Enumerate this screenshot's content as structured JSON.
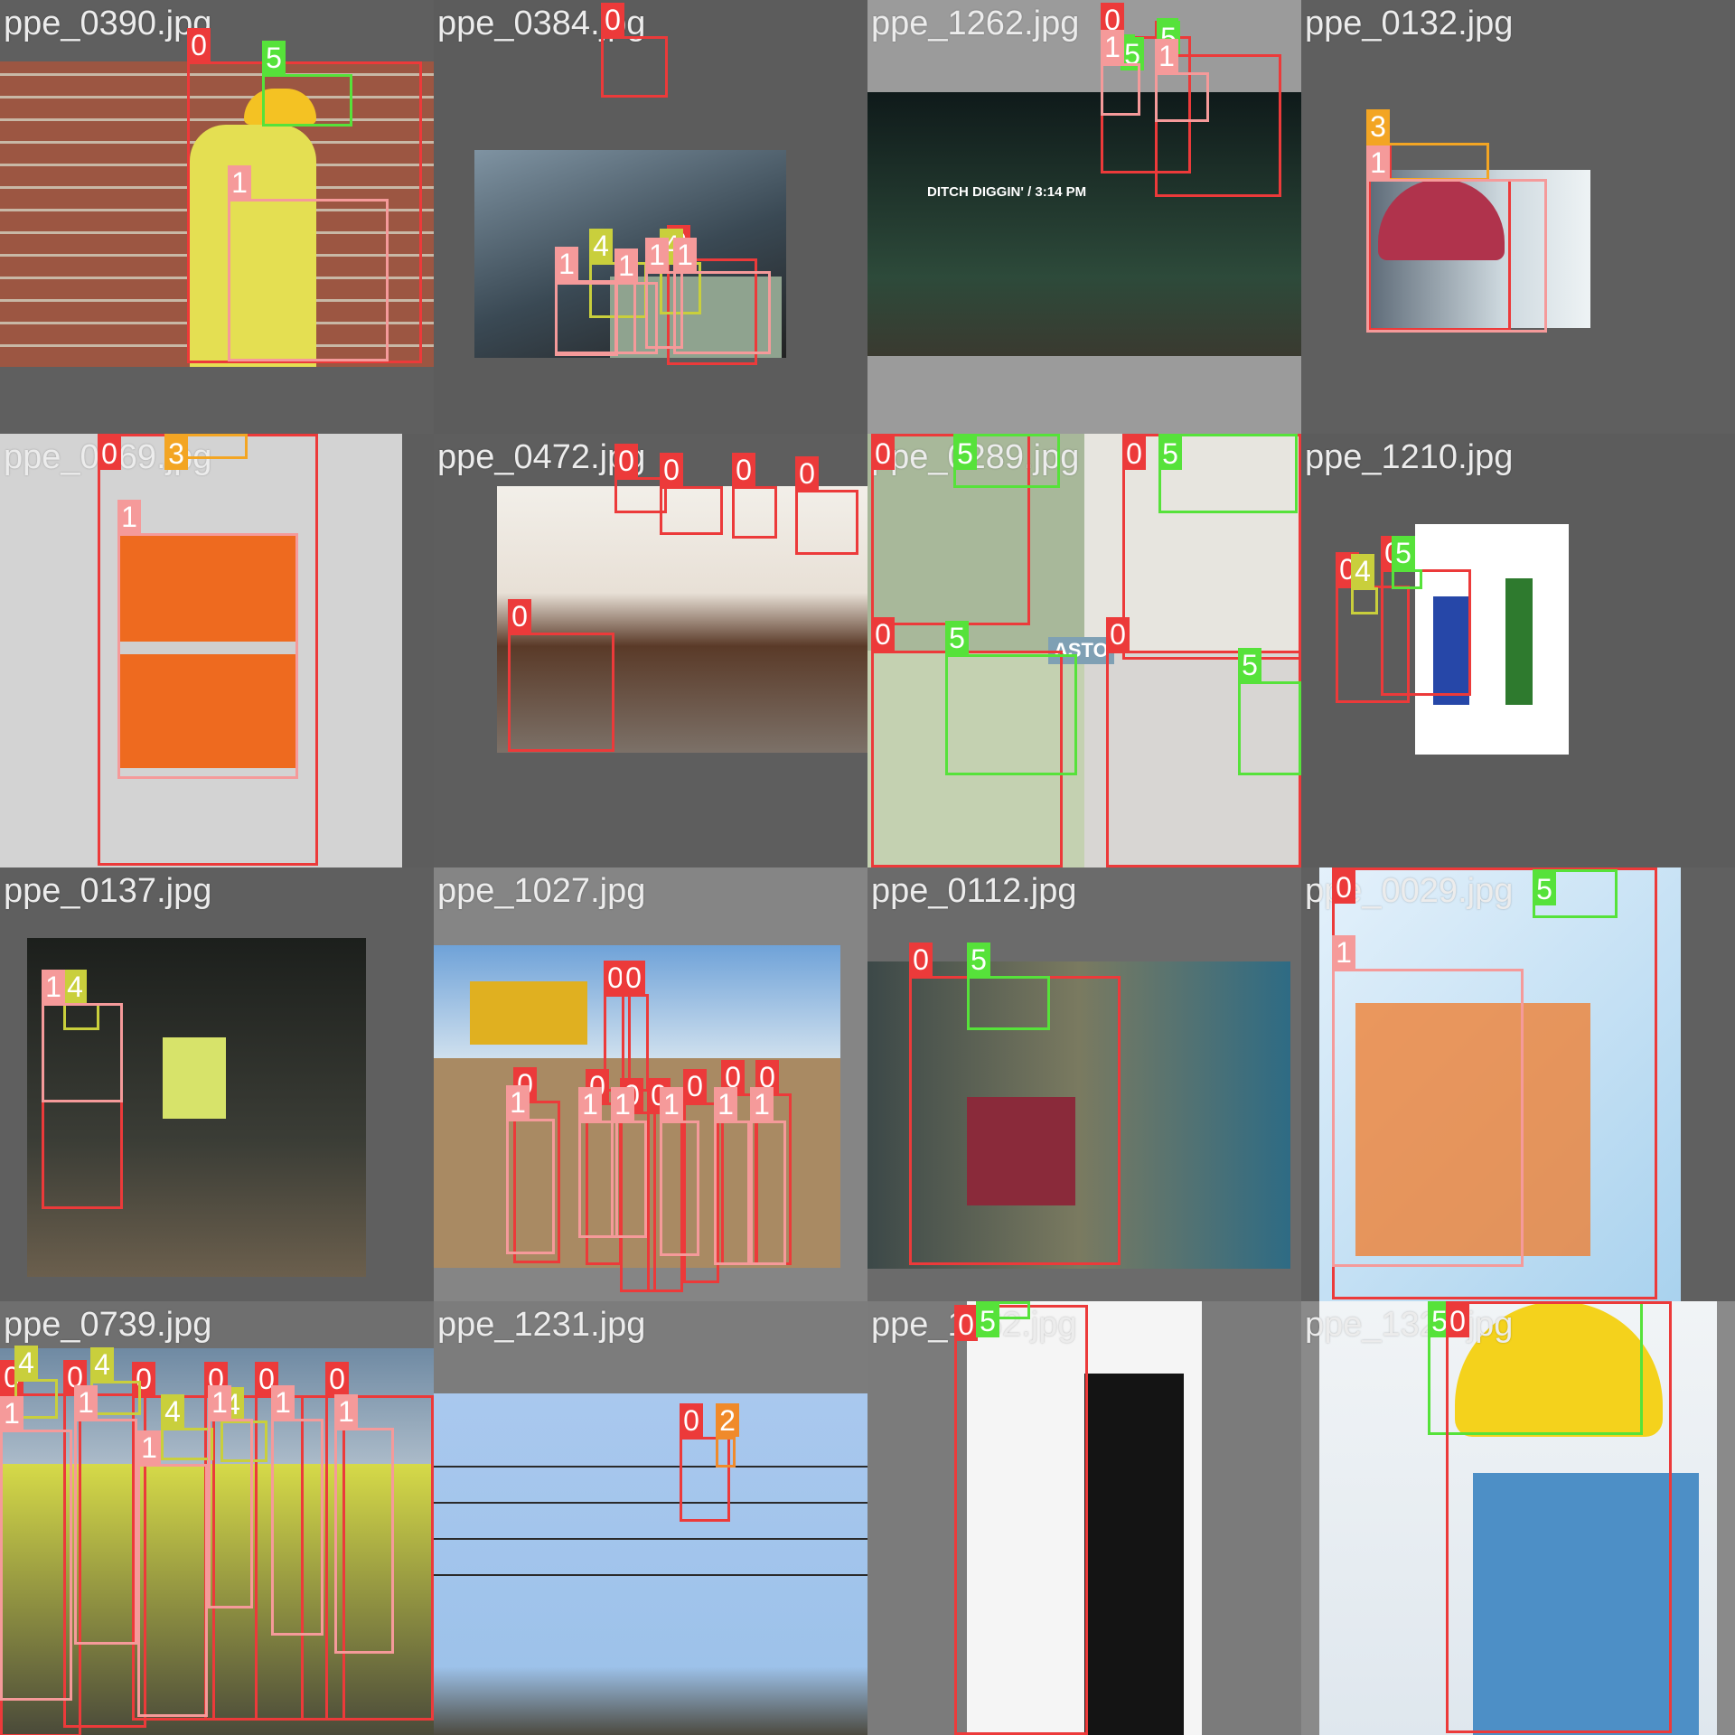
{
  "class_colors": {
    "0": "#ec3a3a",
    "1": "#f59a9a",
    "2": "#f08a2a",
    "3": "#f3a523",
    "4": "#c9cf3c",
    "5": "#56e23a"
  },
  "tiles": [
    {
      "filename": "ppe_0390.jpg",
      "tile_bg": "#5f5f5f",
      "photo_color": "#a35b45",
      "boxes": [
        {
          "label": "0",
          "count": 1
        },
        {
          "label": "5",
          "count": 1
        },
        {
          "label": "1",
          "count": 1
        }
      ]
    },
    {
      "filename": "ppe_0384.jpg",
      "tile_bg": "#5c5c5c",
      "photo_color": "#3c4a55",
      "boxes": [
        {
          "label": "0",
          "count": 2
        },
        {
          "label": "4",
          "count": 2
        },
        {
          "label": "1",
          "count": 5
        }
      ]
    },
    {
      "filename": "ppe_1262.jpg",
      "tile_bg": "#9b9b9b",
      "photo_color": "#1f2d27",
      "overlay_text": "DITCH DIGGIN' / 3:14 PM",
      "boxes": [
        {
          "label": "0",
          "count": 2
        },
        {
          "label": "5",
          "count": 2
        },
        {
          "label": "1",
          "count": 2
        }
      ]
    },
    {
      "filename": "ppe_0132.jpg",
      "tile_bg": "#5f5f5f",
      "photo_color": "#a5b8c0",
      "boxes": [
        {
          "label": "0",
          "count": 1
        },
        {
          "label": "3",
          "count": 1
        },
        {
          "label": "1",
          "count": 1
        }
      ]
    },
    {
      "filename": "ppe_0269.jpg",
      "tile_bg": "#5d5d5d",
      "photo_color": "#c9c9c9",
      "boxes": [
        {
          "label": "0",
          "count": 1
        },
        {
          "label": "3",
          "count": 1
        },
        {
          "label": "1",
          "count": 1
        }
      ]
    },
    {
      "filename": "ppe_0472.jpg",
      "tile_bg": "#5e5e5e",
      "photo_color": "#d8d3cc",
      "boxes": [
        {
          "label": "0",
          "count": 5
        }
      ]
    },
    {
      "filename": "ppe_0289.jpg",
      "tile_bg": "#6a6a6a",
      "photo_color": "#8e9f86",
      "overlay_text": "ASTO",
      "boxes": [
        {
          "label": "0",
          "count": 4
        },
        {
          "label": "5",
          "count": 4
        }
      ]
    },
    {
      "filename": "ppe_1210.jpg",
      "tile_bg": "#5c5c5c",
      "photo_color": "#ffffff",
      "boxes": [
        {
          "label": "0",
          "count": 2
        },
        {
          "label": "4",
          "count": 1
        },
        {
          "label": "5",
          "count": 1
        }
      ]
    },
    {
      "filename": "ppe_0137.jpg",
      "tile_bg": "#5f5f5f",
      "photo_color": "#2d2f2a",
      "boxes": [
        {
          "label": "0",
          "count": 1
        },
        {
          "label": "4",
          "count": 1
        },
        {
          "label": "1",
          "count": 1
        }
      ]
    },
    {
      "filename": "ppe_1027.jpg",
      "tile_bg": "#858585",
      "photo_color": "#b59a76",
      "boxes": [
        {
          "label": "0",
          "count": 9
        },
        {
          "label": "1",
          "count": 6
        }
      ]
    },
    {
      "filename": "ppe_0112.jpg",
      "tile_bg": "#6b6b6b",
      "photo_color": "#5a6b6a",
      "boxes": [
        {
          "label": "0",
          "count": 1
        },
        {
          "label": "5",
          "count": 1
        }
      ]
    },
    {
      "filename": "ppe_0029.jpg",
      "tile_bg": "#606060",
      "photo_color": "#b8d9ef",
      "boxes": [
        {
          "label": "0",
          "count": 1
        },
        {
          "label": "5",
          "count": 1
        },
        {
          "label": "1",
          "count": 1
        }
      ]
    },
    {
      "filename": "ppe_0739.jpg",
      "tile_bg": "#6f6f6f",
      "photo_color": "#8aa1b5",
      "boxes": [
        {
          "label": "0",
          "count": 6
        },
        {
          "label": "4",
          "count": 4
        },
        {
          "label": "1",
          "count": 6
        }
      ]
    },
    {
      "filename": "ppe_1231.jpg",
      "tile_bg": "#7c7c7c",
      "photo_color": "#a8c8ec",
      "boxes": [
        {
          "label": "0",
          "count": 1
        },
        {
          "label": "2",
          "count": 1
        }
      ]
    },
    {
      "filename": "ppe_1162.jpg",
      "tile_bg": "#7b7b7b",
      "photo_color": "#f2f2f2",
      "boxes": [
        {
          "label": "0",
          "count": 1
        },
        {
          "label": "5",
          "count": 1
        }
      ]
    },
    {
      "filename": "ppe_1324.jpg",
      "tile_bg": "#8a8a8a",
      "photo_color": "#e9eef2",
      "boxes": [
        {
          "label": "5",
          "count": 1
        },
        {
          "label": "0",
          "count": 1
        }
      ]
    }
  ]
}
